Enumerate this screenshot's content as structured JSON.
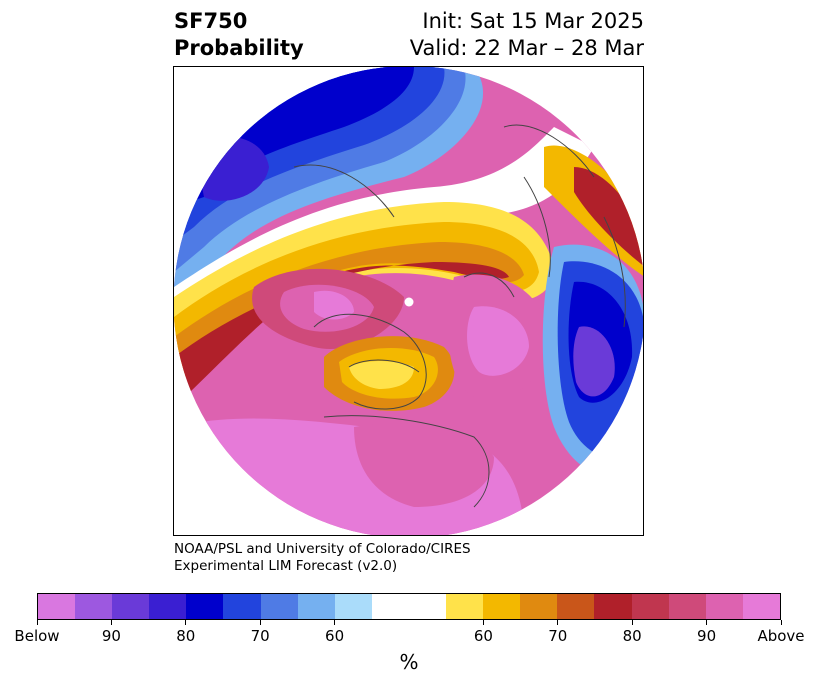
{
  "title": {
    "variable": "SF750",
    "subtitle": "Probability",
    "init": "Init: Sat 15 Mar 2025",
    "valid": "Valid: 22 Mar – 28 Mar"
  },
  "credit": {
    "line1": "NOAA/PSL and University of Colorado/CIRES",
    "line2": "Experimental LIM Forecast (v2.0)"
  },
  "colorbar": {
    "unit": "%",
    "colors": [
      "#d977e0",
      "#9d58e0",
      "#6a3ad8",
      "#3a1fd2",
      "#0000cc",
      "#2244dd",
      "#4f7be5",
      "#75b0f0",
      "#aadcfa",
      "#ffffff",
      "#ffffff",
      "#ffe24a",
      "#f3b800",
      "#e08a10",
      "#c9561a",
      "#b0202a",
      "#c0364f",
      "#cf4a7a",
      "#dd62b0",
      "#e67ad8"
    ],
    "tick_labels": [
      "Below",
      "90",
      "80",
      "70",
      "60",
      "60",
      "70",
      "80",
      "90",
      "Above"
    ]
  },
  "map": {
    "projection": "north-polar-stereographic",
    "field": "SF750 probability"
  }
}
